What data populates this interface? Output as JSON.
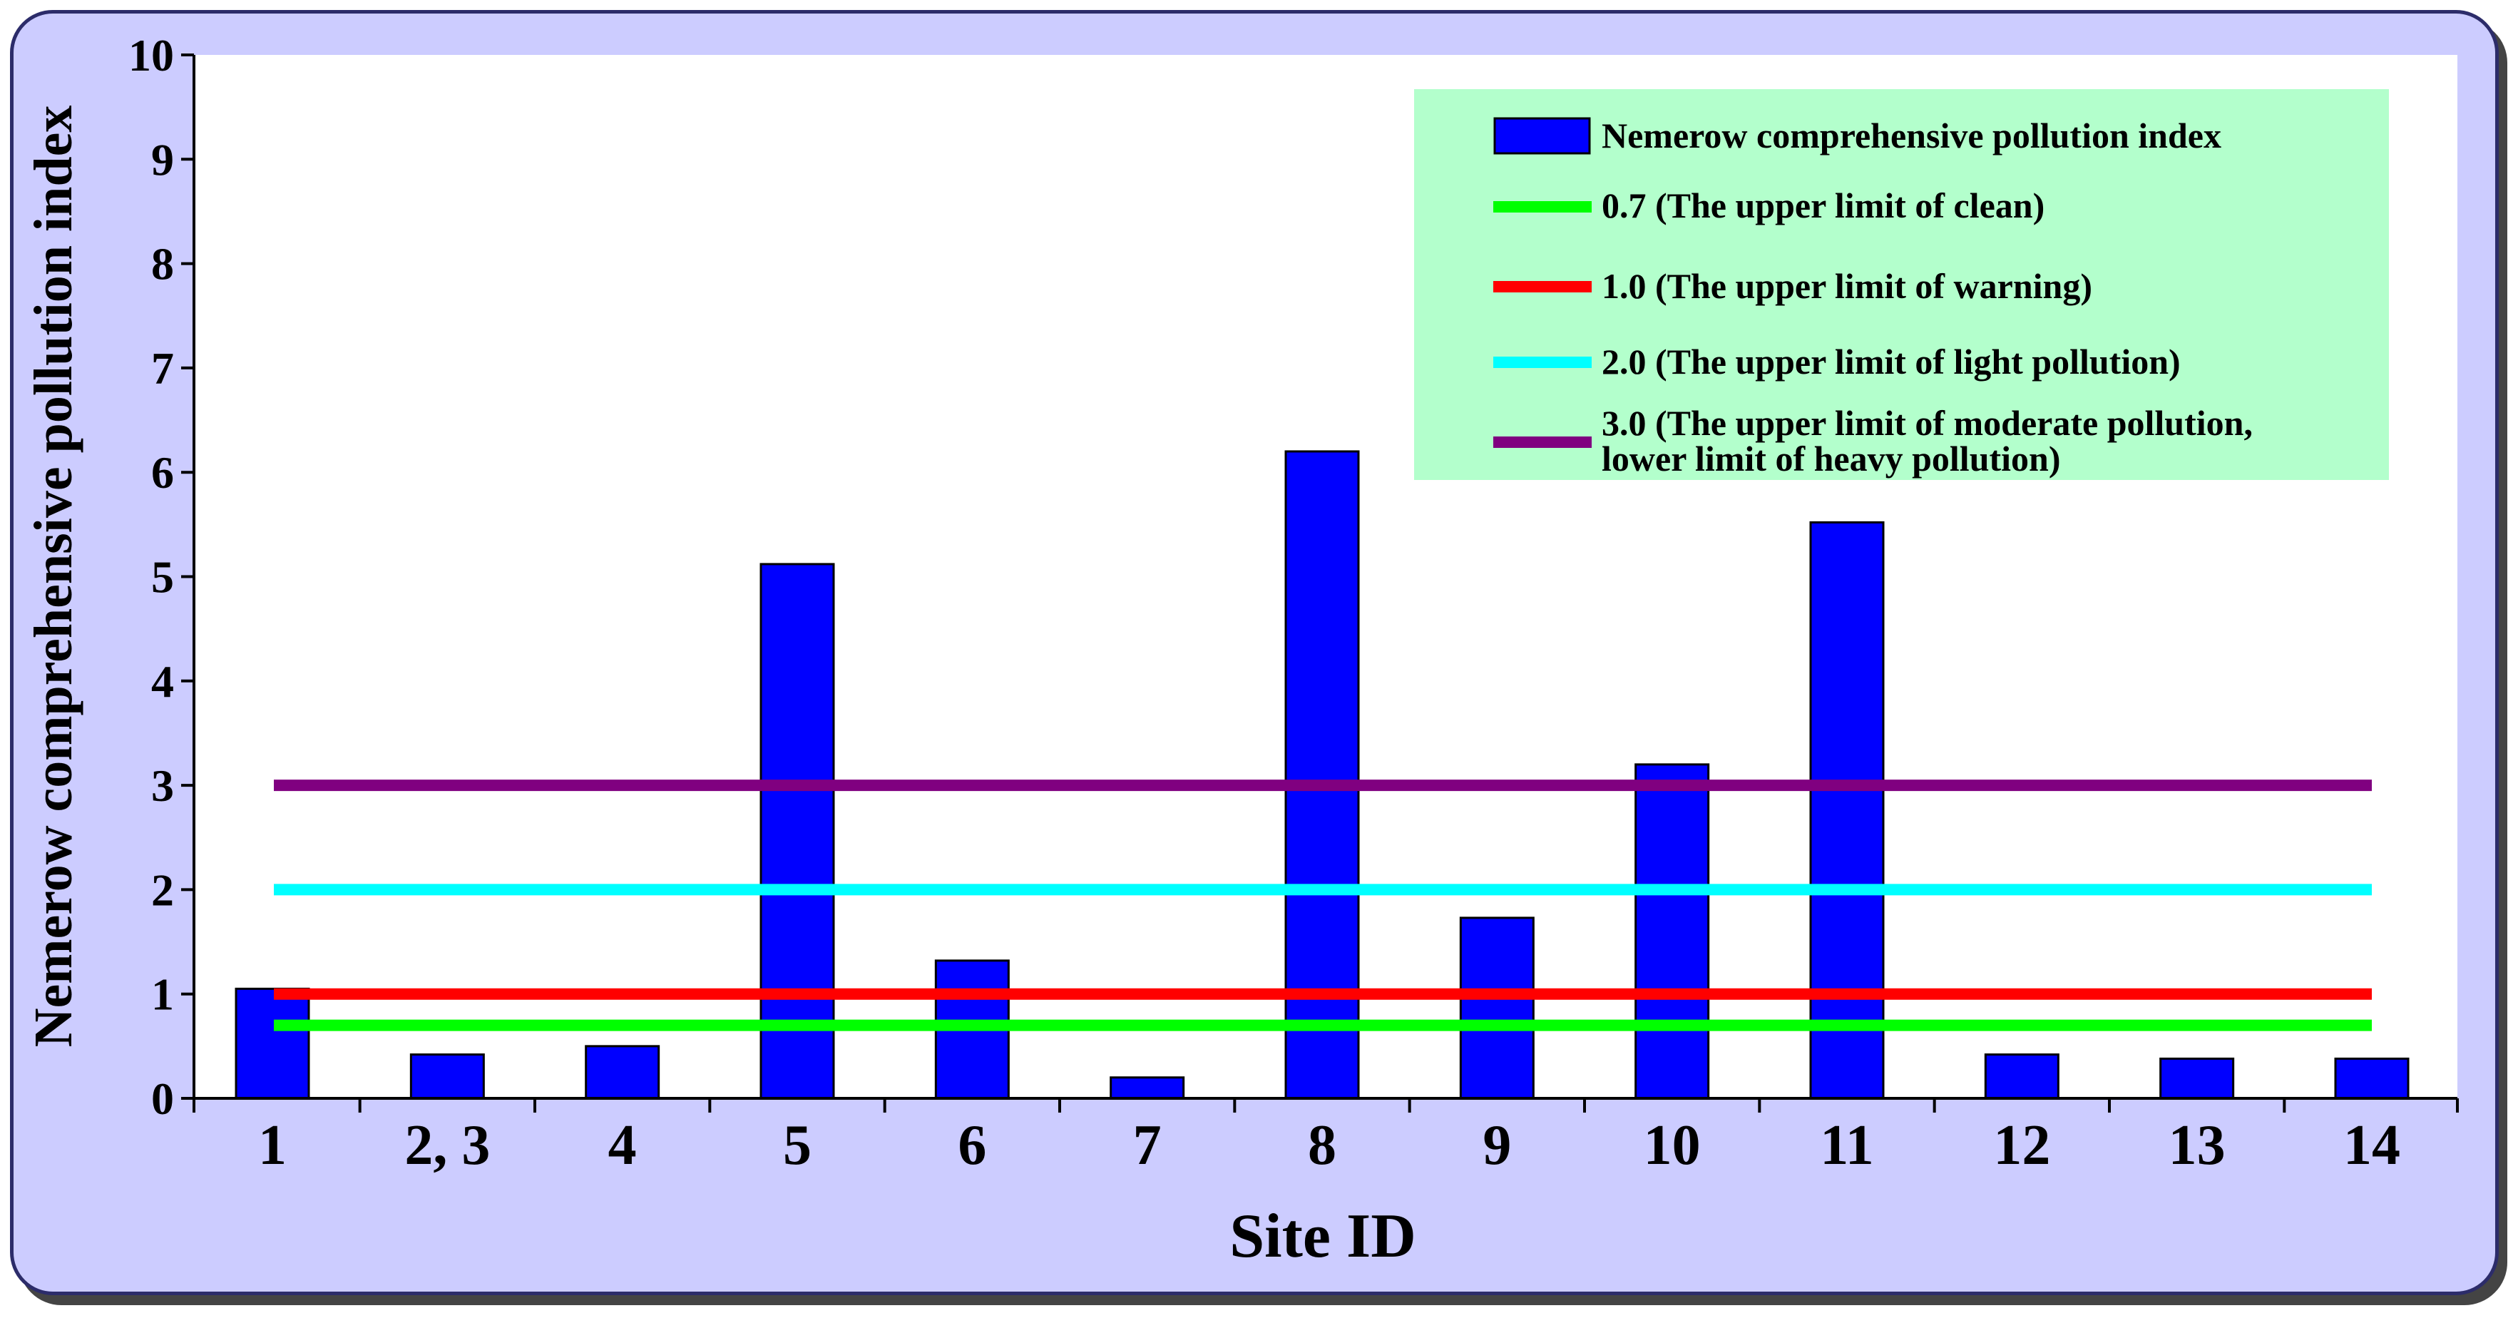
{
  "chart_data": {
    "type": "bar",
    "xlabel": "Site ID",
    "ylabel": "Nemerow comprehensive pollution index",
    "ylim": [
      0,
      10
    ],
    "yticks": [
      0,
      1,
      2,
      3,
      4,
      5,
      6,
      7,
      8,
      9,
      10
    ],
    "categories": [
      "1",
      "2, 3",
      "4",
      "5",
      "6",
      "7",
      "8",
      "9",
      "10",
      "11",
      "12",
      "13",
      "14"
    ],
    "series": [
      {
        "name": "Nemerow comprehensive pollution index",
        "color": "#0000ff",
        "values": [
          1.05,
          0.42,
          0.5,
          5.12,
          1.32,
          0.2,
          6.2,
          1.73,
          3.2,
          5.52,
          0.42,
          0.38,
          0.38
        ]
      }
    ],
    "reference_lines": [
      {
        "value": 0.7,
        "color": "#00ff00",
        "label": "0.7 (The upper limit of clean)"
      },
      {
        "value": 1.0,
        "color": "#ff0000",
        "label": "1.0 (The upper limit of warning)"
      },
      {
        "value": 2.0,
        "color": "#00ffff",
        "label": "2.0 (The upper limit of light pollution)"
      },
      {
        "value": 3.0,
        "color": "#800080",
        "label_line1": "3.0 (The upper limit of moderate pollution,",
        "label_line2": "lower limit of heavy pollution)"
      }
    ],
    "legend_position": "top-right",
    "legend_background": "#b3ffcc",
    "panel_background": "#ccccff",
    "grid": false
  }
}
